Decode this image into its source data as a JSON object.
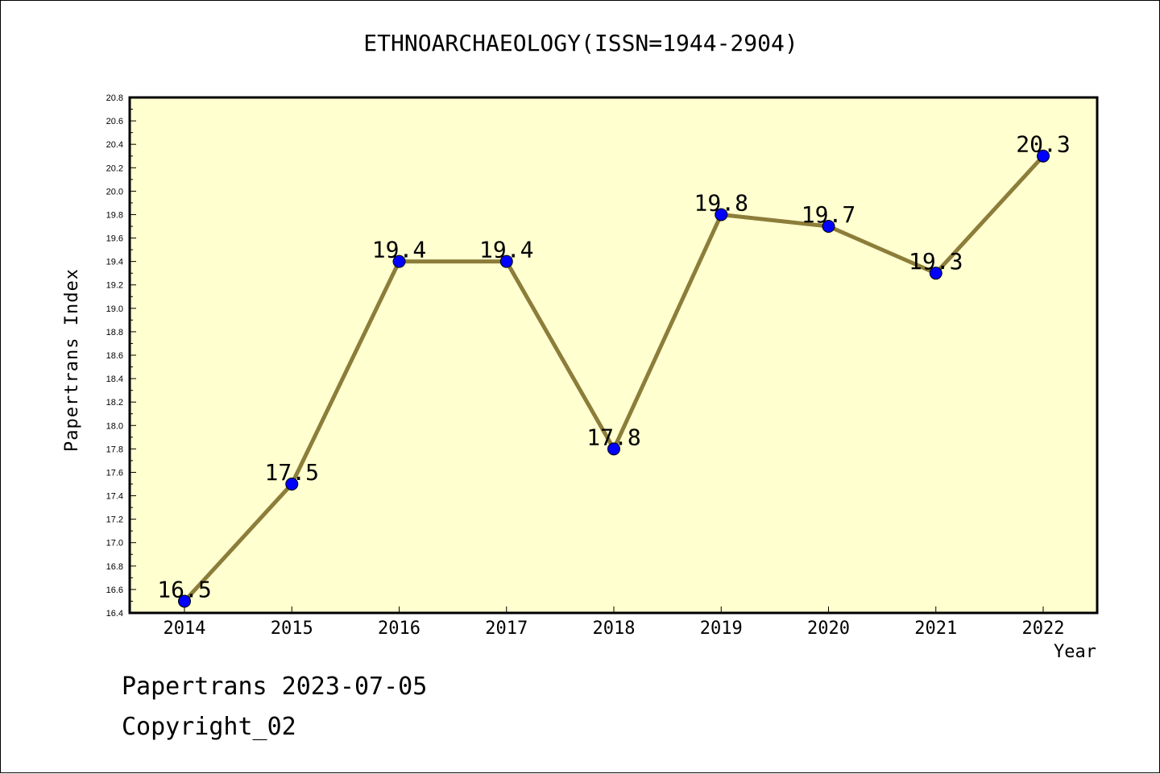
{
  "chart_data": {
    "type": "line",
    "title": "ETHNOARCHAEOLOGY(ISSN=1944-2904)",
    "xlabel": "Year",
    "ylabel": "Papertrans Index",
    "categories": [
      "2014",
      "2015",
      "2016",
      "2017",
      "2018",
      "2019",
      "2020",
      "2021",
      "2022"
    ],
    "values": [
      16.5,
      17.5,
      19.4,
      19.4,
      17.8,
      19.8,
      19.7,
      19.3,
      20.3
    ],
    "data_labels": [
      "16.5",
      "17.5",
      "19.4",
      "19.4",
      "17.8",
      "19.8",
      "19.7",
      "19.3",
      "20.3"
    ],
    "ylim": [
      16.4,
      20.8
    ],
    "yticks": [
      "16.4",
      "16.6",
      "16.8",
      "17.0",
      "17.2",
      "17.4",
      "17.6",
      "17.8",
      "18.0",
      "18.2",
      "18.4",
      "18.6",
      "18.8",
      "19.0",
      "19.2",
      "19.4",
      "19.6",
      "19.8",
      "20.0",
      "20.2",
      "20.4",
      "20.6",
      "20.8"
    ],
    "grid": false,
    "colors": {
      "plot_background": "#ffffd0",
      "line": "#8c7d3a",
      "marker": "#0000ff"
    }
  },
  "footer": {
    "line1": "Papertrans 2023-07-05",
    "line2": "Copyright_02"
  }
}
